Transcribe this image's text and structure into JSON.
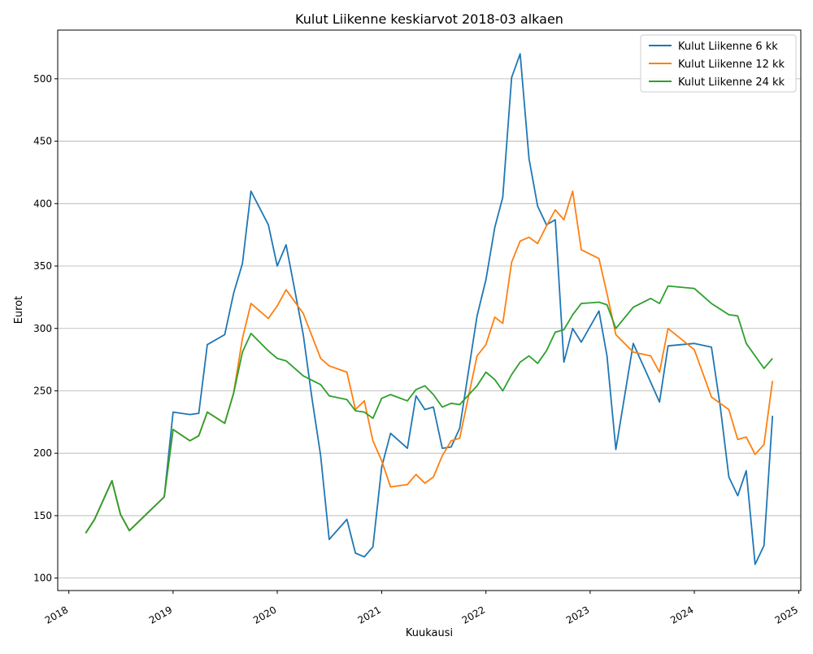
{
  "chart_data": {
    "type": "line",
    "title": "Kulut Liikenne keskiarvot 2018-03 alkaen",
    "xlabel": "Kuukausi",
    "ylabel": "Eurot",
    "xlim": [
      "2017-11-23",
      "2025-01-08"
    ],
    "ylim": [
      90,
      539
    ],
    "x_ticks": [
      "2018-01-01",
      "2019-01-01",
      "2020-01-01",
      "2021-01-01",
      "2022-01-01",
      "2023-01-01",
      "2024-01-01",
      "2025-01-01"
    ],
    "x_tick_labels": [
      "2018",
      "2019",
      "2020",
      "2021",
      "2022",
      "2023",
      "2024",
      "2025"
    ],
    "y_ticks": [
      100,
      150,
      200,
      250,
      300,
      350,
      400,
      450,
      500
    ],
    "y_tick_labels": [
      "100",
      "150",
      "200",
      "250",
      "300",
      "350",
      "400",
      "450",
      "500"
    ],
    "grid": "horizontal",
    "legend_position": "top-right",
    "series": [
      {
        "name": "Kulut Liikenne 6 kk",
        "color": "#1f77b4",
        "points": [
          [
            "2018-03-01",
            136
          ],
          [
            "2018-04-01",
            147
          ],
          [
            "2018-06-01",
            178
          ],
          [
            "2018-07-01",
            151
          ],
          [
            "2018-08-01",
            138
          ],
          [
            "2018-12-01",
            165
          ],
          [
            "2019-01-01",
            233
          ],
          [
            "2019-03-01",
            231
          ],
          [
            "2019-04-01",
            232
          ],
          [
            "2019-05-01",
            287
          ],
          [
            "2019-07-01",
            295
          ],
          [
            "2019-08-01",
            328
          ],
          [
            "2019-09-01",
            352
          ],
          [
            "2019-10-01",
            410
          ],
          [
            "2019-12-01",
            383
          ],
          [
            "2020-01-01",
            350
          ],
          [
            "2020-02-01",
            367
          ],
          [
            "2020-04-01",
            295
          ],
          [
            "2020-05-01",
            245
          ],
          [
            "2020-06-01",
            198
          ],
          [
            "2020-07-01",
            131
          ],
          [
            "2020-09-01",
            147
          ],
          [
            "2020-10-01",
            120
          ],
          [
            "2020-11-01",
            117
          ],
          [
            "2020-12-01",
            125
          ],
          [
            "2021-01-01",
            189
          ],
          [
            "2021-02-01",
            216
          ],
          [
            "2021-04-01",
            204
          ],
          [
            "2021-05-01",
            246
          ],
          [
            "2021-06-01",
            235
          ],
          [
            "2021-07-01",
            237
          ],
          [
            "2021-08-01",
            204
          ],
          [
            "2021-09-01",
            205
          ],
          [
            "2021-10-01",
            220
          ],
          [
            "2021-12-01",
            310
          ],
          [
            "2022-01-01",
            339
          ],
          [
            "2022-02-01",
            381
          ],
          [
            "2022-03-01",
            405
          ],
          [
            "2022-04-01",
            501
          ],
          [
            "2022-05-01",
            520
          ],
          [
            "2022-06-01",
            436
          ],
          [
            "2022-07-01",
            398
          ],
          [
            "2022-08-01",
            383
          ],
          [
            "2022-09-01",
            387
          ],
          [
            "2022-10-01",
            273
          ],
          [
            "2022-11-01",
            300
          ],
          [
            "2022-12-01",
            289
          ],
          [
            "2023-02-01",
            314
          ],
          [
            "2023-03-01",
            278
          ],
          [
            "2023-04-01",
            203
          ],
          [
            "2023-06-01",
            288
          ],
          [
            "2023-08-01",
            257
          ],
          [
            "2023-09-01",
            241
          ],
          [
            "2023-10-01",
            286
          ],
          [
            "2024-01-01",
            288
          ],
          [
            "2024-03-01",
            285
          ],
          [
            "2024-04-01",
            237
          ],
          [
            "2024-05-01",
            181
          ],
          [
            "2024-06-01",
            166
          ],
          [
            "2024-07-01",
            186
          ],
          [
            "2024-08-01",
            111
          ],
          [
            "2024-09-01",
            126
          ],
          [
            "2024-10-01",
            230
          ]
        ]
      },
      {
        "name": "Kulut Liikenne 12 kk",
        "color": "#ff7f0e",
        "points": [
          [
            "2018-03-01",
            136
          ],
          [
            "2018-04-01",
            147
          ],
          [
            "2018-06-01",
            178
          ],
          [
            "2018-07-01",
            151
          ],
          [
            "2018-08-01",
            138
          ],
          [
            "2018-12-01",
            165
          ],
          [
            "2019-01-01",
            219
          ],
          [
            "2019-03-01",
            210
          ],
          [
            "2019-04-01",
            214
          ],
          [
            "2019-05-01",
            233
          ],
          [
            "2019-07-01",
            224
          ],
          [
            "2019-08-01",
            248
          ],
          [
            "2019-09-01",
            292
          ],
          [
            "2019-10-01",
            320
          ],
          [
            "2019-12-01",
            308
          ],
          [
            "2020-01-01",
            318
          ],
          [
            "2020-02-01",
            331
          ],
          [
            "2020-04-01",
            312
          ],
          [
            "2020-06-01",
            276
          ],
          [
            "2020-07-01",
            270
          ],
          [
            "2020-09-01",
            265
          ],
          [
            "2020-10-01",
            235
          ],
          [
            "2020-11-01",
            242
          ],
          [
            "2020-12-01",
            210
          ],
          [
            "2021-01-01",
            194
          ],
          [
            "2021-02-01",
            173
          ],
          [
            "2021-04-01",
            175
          ],
          [
            "2021-05-01",
            183
          ],
          [
            "2021-06-01",
            176
          ],
          [
            "2021-07-01",
            181
          ],
          [
            "2021-08-01",
            198
          ],
          [
            "2021-09-01",
            210
          ],
          [
            "2021-10-01",
            212
          ],
          [
            "2021-12-01",
            278
          ],
          [
            "2022-01-01",
            287
          ],
          [
            "2022-02-01",
            309
          ],
          [
            "2022-03-01",
            304
          ],
          [
            "2022-04-01",
            353
          ],
          [
            "2022-05-01",
            370
          ],
          [
            "2022-06-01",
            373
          ],
          [
            "2022-07-01",
            368
          ],
          [
            "2022-08-01",
            382
          ],
          [
            "2022-09-01",
            395
          ],
          [
            "2022-10-01",
            387
          ],
          [
            "2022-11-01",
            410
          ],
          [
            "2022-12-01",
            363
          ],
          [
            "2023-02-01",
            356
          ],
          [
            "2023-03-01",
            328
          ],
          [
            "2023-04-01",
            295
          ],
          [
            "2023-06-01",
            281
          ],
          [
            "2023-08-01",
            278
          ],
          [
            "2023-09-01",
            265
          ],
          [
            "2023-10-01",
            300
          ],
          [
            "2024-01-01",
            283
          ],
          [
            "2024-03-01",
            245
          ],
          [
            "2024-05-01",
            235
          ],
          [
            "2024-06-01",
            211
          ],
          [
            "2024-07-01",
            213
          ],
          [
            "2024-08-01",
            199
          ],
          [
            "2024-09-01",
            207
          ],
          [
            "2024-10-01",
            258
          ]
        ]
      },
      {
        "name": "Kulut Liikenne 24 kk",
        "color": "#2ca02c",
        "points": [
          [
            "2018-03-01",
            136
          ],
          [
            "2018-04-01",
            147
          ],
          [
            "2018-06-01",
            178
          ],
          [
            "2018-07-01",
            151
          ],
          [
            "2018-08-01",
            138
          ],
          [
            "2018-12-01",
            165
          ],
          [
            "2019-01-01",
            219
          ],
          [
            "2019-03-01",
            210
          ],
          [
            "2019-04-01",
            214
          ],
          [
            "2019-05-01",
            233
          ],
          [
            "2019-07-01",
            224
          ],
          [
            "2019-08-01",
            248
          ],
          [
            "2019-09-01",
            281
          ],
          [
            "2019-10-01",
            296
          ],
          [
            "2019-12-01",
            282
          ],
          [
            "2020-01-01",
            276
          ],
          [
            "2020-02-01",
            274
          ],
          [
            "2020-04-01",
            262
          ],
          [
            "2020-06-01",
            255
          ],
          [
            "2020-07-01",
            246
          ],
          [
            "2020-09-01",
            243
          ],
          [
            "2020-10-01",
            234
          ],
          [
            "2020-11-01",
            233
          ],
          [
            "2020-12-01",
            228
          ],
          [
            "2021-01-01",
            244
          ],
          [
            "2021-02-01",
            247
          ],
          [
            "2021-04-01",
            242
          ],
          [
            "2021-05-01",
            251
          ],
          [
            "2021-06-01",
            254
          ],
          [
            "2021-07-01",
            247
          ],
          [
            "2021-08-01",
            237
          ],
          [
            "2021-09-01",
            240
          ],
          [
            "2021-10-01",
            239
          ],
          [
            "2021-12-01",
            254
          ],
          [
            "2022-01-01",
            265
          ],
          [
            "2022-02-01",
            259
          ],
          [
            "2022-03-01",
            250
          ],
          [
            "2022-04-01",
            263
          ],
          [
            "2022-05-01",
            273
          ],
          [
            "2022-06-01",
            278
          ],
          [
            "2022-07-01",
            272
          ],
          [
            "2022-08-01",
            282
          ],
          [
            "2022-09-01",
            297
          ],
          [
            "2022-10-01",
            299
          ],
          [
            "2022-11-01",
            311
          ],
          [
            "2022-12-01",
            320
          ],
          [
            "2023-02-01",
            321
          ],
          [
            "2023-03-01",
            319
          ],
          [
            "2023-04-01",
            300
          ],
          [
            "2023-06-01",
            317
          ],
          [
            "2023-08-01",
            324
          ],
          [
            "2023-09-01",
            320
          ],
          [
            "2023-10-01",
            334
          ],
          [
            "2024-01-01",
            332
          ],
          [
            "2024-03-01",
            320
          ],
          [
            "2024-05-01",
            311
          ],
          [
            "2024-06-01",
            310
          ],
          [
            "2024-07-01",
            288
          ],
          [
            "2024-08-01",
            278
          ],
          [
            "2024-09-01",
            268
          ],
          [
            "2024-10-01",
            276
          ]
        ]
      }
    ]
  }
}
